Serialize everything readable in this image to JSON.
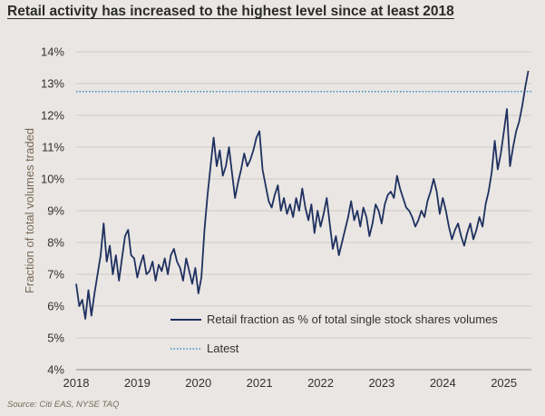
{
  "title": "Retail activity has increased to the highest level since at least 2018",
  "source": "Source: Citi EAS, NYSE TAQ",
  "chart_data": {
    "type": "line",
    "title": "Retail activity has increased to the highest level since at least 2018",
    "ylabel": "Fraction of total volumes traded",
    "xlabel": "",
    "ylim": [
      4,
      14
    ],
    "xlim": [
      2018,
      2025.45
    ],
    "grid": "horizontal",
    "legend_placement": "lower-right-inside",
    "y_ticks": [
      4,
      5,
      6,
      7,
      8,
      9,
      10,
      11,
      12,
      13,
      14
    ],
    "y_tick_labels": [
      "4%",
      "5%",
      "6%",
      "7%",
      "8%",
      "9%",
      "10%",
      "11%",
      "12%",
      "13%",
      "14%"
    ],
    "x_ticks": [
      2018,
      2019,
      2020,
      2021,
      2022,
      2023,
      2024,
      2025
    ],
    "x_tick_labels": [
      "2018",
      "2019",
      "2020",
      "2021",
      "2022",
      "2023",
      "2024",
      "2025"
    ],
    "colors": {
      "series": "#1f3060",
      "latest": "#3a8fc8",
      "grid": "#cfcac5",
      "axis": "#8a8a8a"
    },
    "series": [
      {
        "name": "Retail fraction as % of total single stock shares volumes",
        "style": "solid",
        "x": [
          2018.0,
          2018.05,
          2018.1,
          2018.15,
          2018.2,
          2018.25,
          2018.3,
          2018.35,
          2018.4,
          2018.45,
          2018.5,
          2018.55,
          2018.6,
          2018.65,
          2018.7,
          2018.75,
          2018.8,
          2018.85,
          2018.9,
          2018.95,
          2019.0,
          2019.05,
          2019.1,
          2019.15,
          2019.2,
          2019.25,
          2019.3,
          2019.35,
          2019.4,
          2019.45,
          2019.5,
          2019.55,
          2019.6,
          2019.65,
          2019.7,
          2019.75,
          2019.8,
          2019.85,
          2019.9,
          2019.95,
          2020.0,
          2020.05,
          2020.1,
          2020.15,
          2020.2,
          2020.25,
          2020.3,
          2020.35,
          2020.4,
          2020.45,
          2020.5,
          2020.55,
          2020.6,
          2020.65,
          2020.7,
          2020.75,
          2020.8,
          2020.85,
          2020.9,
          2020.95,
          2021.0,
          2021.05,
          2021.1,
          2021.15,
          2021.2,
          2021.25,
          2021.3,
          2021.35,
          2021.4,
          2021.45,
          2021.5,
          2021.55,
          2021.6,
          2021.65,
          2021.7,
          2021.75,
          2021.8,
          2021.85,
          2021.9,
          2021.95,
          2022.0,
          2022.05,
          2022.1,
          2022.15,
          2022.2,
          2022.25,
          2022.3,
          2022.35,
          2022.4,
          2022.45,
          2022.5,
          2022.55,
          2022.6,
          2022.65,
          2022.7,
          2022.75,
          2022.8,
          2022.85,
          2022.9,
          2022.95,
          2023.0,
          2023.05,
          2023.1,
          2023.15,
          2023.2,
          2023.25,
          2023.3,
          2023.35,
          2023.4,
          2023.45,
          2023.5,
          2023.55,
          2023.6,
          2023.65,
          2023.7,
          2023.75,
          2023.8,
          2023.85,
          2023.9,
          2023.95,
          2024.0,
          2024.05,
          2024.1,
          2024.15,
          2024.2,
          2024.25,
          2024.3,
          2024.35,
          2024.4,
          2024.45,
          2024.5,
          2024.55,
          2024.6,
          2024.65,
          2024.7,
          2024.75,
          2024.8,
          2024.85,
          2024.9,
          2024.95,
          2025.0,
          2025.05,
          2025.1,
          2025.15,
          2025.2,
          2025.25,
          2025.3,
          2025.35,
          2025.4
        ],
        "values": [
          6.7,
          6.0,
          6.2,
          5.6,
          6.5,
          5.7,
          6.4,
          7.0,
          7.6,
          8.6,
          7.4,
          7.9,
          7.0,
          7.6,
          6.8,
          7.5,
          8.2,
          8.4,
          7.6,
          7.5,
          6.9,
          7.3,
          7.6,
          7.0,
          7.1,
          7.4,
          6.8,
          7.3,
          7.1,
          7.5,
          7.0,
          7.6,
          7.8,
          7.4,
          7.2,
          6.8,
          7.5,
          7.1,
          6.7,
          7.2,
          6.4,
          6.9,
          8.4,
          9.5,
          10.4,
          11.3,
          10.4,
          10.9,
          10.1,
          10.4,
          11.0,
          10.2,
          9.4,
          9.9,
          10.3,
          10.8,
          10.4,
          10.6,
          10.9,
          11.3,
          11.5,
          10.3,
          9.8,
          9.3,
          9.1,
          9.5,
          9.8,
          9.0,
          9.4,
          8.9,
          9.2,
          8.8,
          9.4,
          9.0,
          9.7,
          9.1,
          8.7,
          9.2,
          8.3,
          9.0,
          8.5,
          8.9,
          9.4,
          8.6,
          7.8,
          8.2,
          7.6,
          8.0,
          8.4,
          8.8,
          9.3,
          8.7,
          9.0,
          8.5,
          9.1,
          8.8,
          8.2,
          8.6,
          9.2,
          9.0,
          8.6,
          9.2,
          9.5,
          9.6,
          9.4,
          10.1,
          9.7,
          9.4,
          9.1,
          9.0,
          8.8,
          8.5,
          8.7,
          9.0,
          8.8,
          9.3,
          9.6,
          10.0,
          9.6,
          8.9,
          9.4,
          9.0,
          8.5,
          8.1,
          8.4,
          8.6,
          8.2,
          7.9,
          8.3,
          8.6,
          8.1,
          8.4,
          8.8,
          8.5,
          9.2,
          9.6,
          10.2,
          11.2,
          10.3,
          10.8,
          11.5,
          12.2,
          10.4,
          11.0,
          11.5,
          11.8,
          12.3,
          12.9,
          13.4
        ]
      },
      {
        "name": "Latest",
        "style": "dotted",
        "value": 12.75
      }
    ]
  }
}
